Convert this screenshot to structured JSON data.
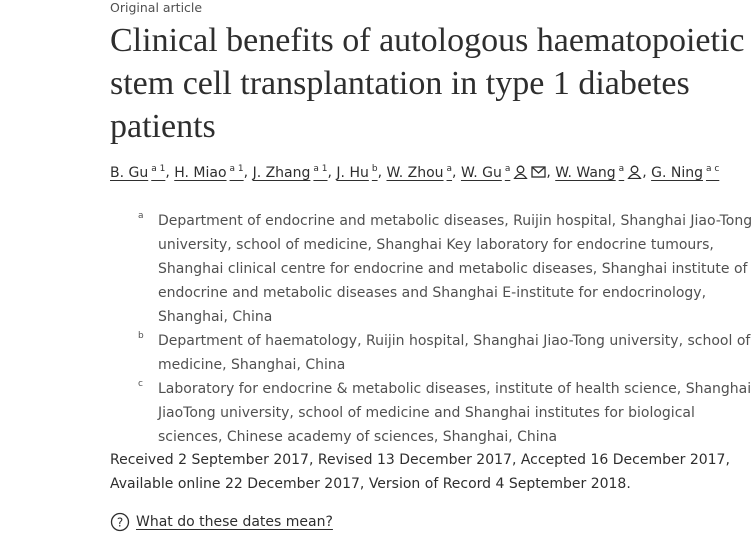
{
  "article_type": "Original article",
  "title": "Clinical benefits of autologous haematopoietic stem cell transplantation in type 1 diabetes patients",
  "author_separator": ",",
  "authors": [
    {
      "name": "B. Gu",
      "sup": "a 1"
    },
    {
      "name": "H. Miao",
      "sup": "a 1"
    },
    {
      "name": "J. Zhang",
      "sup": "a 1"
    },
    {
      "name": "J. Hu",
      "sup": "b"
    },
    {
      "name": "W. Zhou",
      "sup": "a"
    },
    {
      "name": "W. Gu",
      "sup": "a",
      "icons": [
        "person",
        "mail"
      ]
    },
    {
      "name": "W. Wang",
      "sup": "a",
      "icons": [
        "person"
      ]
    },
    {
      "name": "G. Ning",
      "sup": "a c"
    }
  ],
  "affiliations": [
    {
      "label": "a",
      "text": "Department of endocrine and metabolic diseases, Ruijin hospital, Shanghai Jiao-Tong university, school of medicine, Shanghai Key laboratory for endocrine tumours, Shanghai clinical centre for endocrine and metabolic diseases, Shanghai institute of endocrine and metabolic diseases and Shanghai E-institute for endocrinology, Shanghai, China"
    },
    {
      "label": "b",
      "text": "Department of haematology, Ruijin hospital, Shanghai Jiao-Tong university, school of medicine, Shanghai, China"
    },
    {
      "label": "c",
      "text": "Laboratory for endocrine & metabolic diseases, institute of health science, Shanghai JiaoTong university, school of medicine and Shanghai institutes for biological sciences, Chinese academy of sciences, Shanghai, China"
    }
  ],
  "dates": "Received 2 September 2017, Revised 13 December 2017, Accepted 16 December 2017, Available online 22 December 2017, Version of Record 4 September 2018.",
  "help_icon": "?",
  "help_link": "What do these dates mean?"
}
